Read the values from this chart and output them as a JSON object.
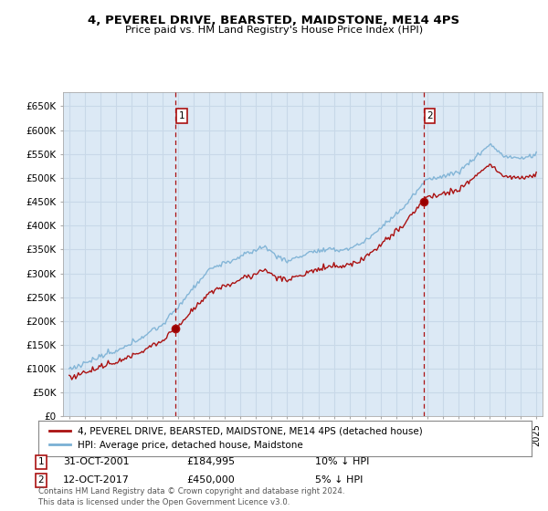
{
  "title": "4, PEVEREL DRIVE, BEARSTED, MAIDSTONE, ME14 4PS",
  "subtitle": "Price paid vs. HM Land Registry's House Price Index (HPI)",
  "background_color": "#dce9f5",
  "plot_bg": "#dce9f5",
  "hpi_color": "#7ab0d4",
  "price_color": "#aa1111",
  "grid_color": "#c8d8e8",
  "ylim": [
    0,
    680000
  ],
  "yticks": [
    0,
    50000,
    100000,
    150000,
    200000,
    250000,
    300000,
    350000,
    400000,
    450000,
    500000,
    550000,
    600000,
    650000
  ],
  "ytick_labels": [
    "£0",
    "£50K",
    "£100K",
    "£150K",
    "£200K",
    "£250K",
    "£300K",
    "£350K",
    "£400K",
    "£450K",
    "£500K",
    "£550K",
    "£600K",
    "£650K"
  ],
  "transaction1_year": 2001.833,
  "transaction1_price": 184995,
  "transaction2_year": 2017.75,
  "transaction2_price": 450000,
  "legend_price_label": "4, PEVEREL DRIVE, BEARSTED, MAIDSTONE, ME14 4PS (detached house)",
  "legend_hpi_label": "HPI: Average price, detached house, Maidstone",
  "note1_date": "31-OCT-2001",
  "note1_price": "£184,995",
  "note1_hpi": "10% ↓ HPI",
  "note2_date": "12-OCT-2017",
  "note2_price": "£450,000",
  "note2_hpi": "5% ↓ HPI",
  "footer": "Contains HM Land Registry data © Crown copyright and database right 2024.\nThis data is licensed under the Open Government Licence v3.0."
}
